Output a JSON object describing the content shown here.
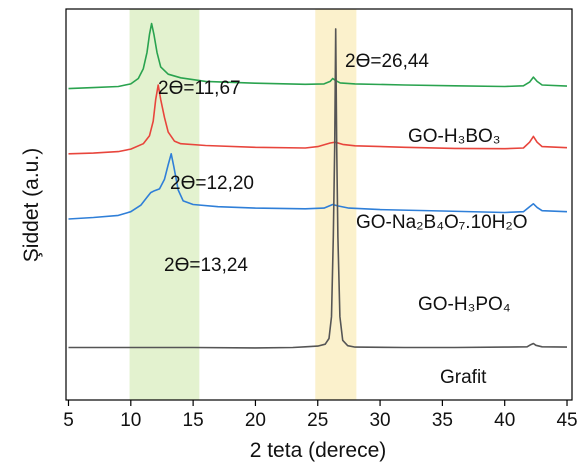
{
  "chart_data": {
    "type": "line",
    "xlabel": "2 teta (derece)",
    "ylabel": "Şiddet (a.u.)",
    "xlim": [
      4.8,
      45.4
    ],
    "xticks": [
      5,
      10,
      15,
      20,
      25,
      30,
      35,
      40,
      45
    ],
    "y_ticks_shown": false,
    "grid": false,
    "legend": "none",
    "highlight_bands": [
      {
        "x_range": [
          9.9,
          15.5
        ],
        "color": "#e3f2cf"
      },
      {
        "x_range": [
          24.8,
          28.1
        ],
        "color": "#fbf1cc"
      }
    ],
    "series": [
      {
        "name": "GO-H₃BO₃",
        "color": "#2aa34f",
        "baseline": 86,
        "points": [
          [
            5.0,
            86
          ],
          [
            7,
            86.3
          ],
          [
            9,
            86.6
          ],
          [
            10,
            87.3
          ],
          [
            10.6,
            88.8
          ],
          [
            11.0,
            91.5
          ],
          [
            11.3,
            96
          ],
          [
            11.5,
            101
          ],
          [
            11.67,
            104
          ],
          [
            11.85,
            101
          ],
          [
            12.1,
            96
          ],
          [
            12.4,
            92
          ],
          [
            13,
            90
          ],
          [
            14,
            89
          ],
          [
            16,
            88
          ],
          [
            20,
            87.5
          ],
          [
            24,
            87.2
          ],
          [
            25.5,
            87.3
          ],
          [
            26.0,
            88
          ],
          [
            26.2,
            88.8
          ],
          [
            26.4,
            88.3
          ],
          [
            26.8,
            87.6
          ],
          [
            28,
            87.3
          ],
          [
            32,
            87
          ],
          [
            36,
            86.8
          ],
          [
            40,
            86.6
          ],
          [
            41.5,
            86.8
          ],
          [
            42.0,
            87.8
          ],
          [
            42.3,
            89.2
          ],
          [
            42.6,
            88
          ],
          [
            43,
            87
          ],
          [
            45,
            86.7
          ]
        ]
      },
      {
        "name": "GO-Na₂B₄O₇.10H₂O",
        "color": "#e8453c",
        "baseline": 68,
        "points": [
          [
            5.0,
            68
          ],
          [
            7,
            68.2
          ],
          [
            9,
            68.6
          ],
          [
            10,
            69.3
          ],
          [
            11,
            70.8
          ],
          [
            11.5,
            73
          ],
          [
            11.8,
            77
          ],
          [
            12.0,
            83
          ],
          [
            12.2,
            87
          ],
          [
            12.4,
            83
          ],
          [
            12.7,
            78
          ],
          [
            13,
            74
          ],
          [
            13.5,
            71.5
          ],
          [
            14,
            70.8
          ],
          [
            16,
            70.3
          ],
          [
            20,
            69.8
          ],
          [
            24,
            69.6
          ],
          [
            25,
            70
          ],
          [
            26.0,
            71
          ],
          [
            26.4,
            71.2
          ],
          [
            27,
            70.6
          ],
          [
            28,
            70.2
          ],
          [
            32,
            69.8
          ],
          [
            36,
            69.5
          ],
          [
            40,
            69.4
          ],
          [
            41.5,
            69.6
          ],
          [
            42.0,
            71.2
          ],
          [
            42.3,
            72.8
          ],
          [
            42.6,
            71.2
          ],
          [
            43,
            70
          ],
          [
            45,
            69.7
          ]
        ]
      },
      {
        "name": "GO-H₃PO₄",
        "color": "#2f7fd8",
        "baseline": 50,
        "points": [
          [
            5.0,
            50
          ],
          [
            7,
            50.4
          ],
          [
            9,
            51
          ],
          [
            10,
            52
          ],
          [
            10.8,
            53.8
          ],
          [
            11.3,
            56
          ],
          [
            11.6,
            57.3
          ],
          [
            11.9,
            57.8
          ],
          [
            12.3,
            58.3
          ],
          [
            12.7,
            61
          ],
          [
            13.0,
            65
          ],
          [
            13.24,
            68
          ],
          [
            13.45,
            64.5
          ],
          [
            13.8,
            58
          ],
          [
            14.2,
            55
          ],
          [
            15,
            54
          ],
          [
            17,
            53.4
          ],
          [
            20,
            53
          ],
          [
            24,
            52.8
          ],
          [
            25.5,
            53
          ],
          [
            26.2,
            54
          ],
          [
            26.6,
            53.6
          ],
          [
            27.5,
            53
          ],
          [
            30,
            52.6
          ],
          [
            35,
            52.2
          ],
          [
            40,
            51.8
          ],
          [
            41.5,
            52
          ],
          [
            42.0,
            53.4
          ],
          [
            42.3,
            54.2
          ],
          [
            42.6,
            53.2
          ],
          [
            43,
            52.3
          ],
          [
            45,
            52
          ]
        ]
      },
      {
        "name": "Grafit",
        "color": "#555555",
        "baseline": 14,
        "points": [
          [
            5.0,
            14.5
          ],
          [
            10,
            14.5
          ],
          [
            15,
            14.5
          ],
          [
            20,
            14.4
          ],
          [
            23,
            14.5
          ],
          [
            24,
            14.7
          ],
          [
            25,
            14.9
          ],
          [
            25.6,
            15.4
          ],
          [
            25.9,
            17
          ],
          [
            26.1,
            23
          ],
          [
            26.25,
            45
          ],
          [
            26.36,
            70
          ],
          [
            26.44,
            102.5
          ],
          [
            26.52,
            70
          ],
          [
            26.62,
            45
          ],
          [
            26.78,
            23
          ],
          [
            27.0,
            16.5
          ],
          [
            27.4,
            15
          ],
          [
            28,
            14.6
          ],
          [
            32,
            14.5
          ],
          [
            36,
            14.5
          ],
          [
            40,
            14.6
          ],
          [
            41.8,
            14.7
          ],
          [
            42.1,
            15.3
          ],
          [
            42.3,
            15.6
          ],
          [
            42.5,
            15.1
          ],
          [
            43,
            14.7
          ],
          [
            45,
            14.6
          ]
        ]
      }
    ],
    "ylim": [
      0,
      108
    ],
    "annotations": [
      {
        "text": "2ϴ=26,44",
        "x": 26.44,
        "y": 102.5,
        "color": "#111111"
      },
      {
        "text": "2ϴ=11,67",
        "x": 11.67,
        "y": 104,
        "color": "#111111"
      },
      {
        "text": "2ϴ=12,20",
        "x": 12.2,
        "y": 87,
        "color": "#111111"
      },
      {
        "text": "2ϴ=13,24",
        "x": 13.24,
        "y": 68,
        "color": "#111111"
      }
    ]
  }
}
